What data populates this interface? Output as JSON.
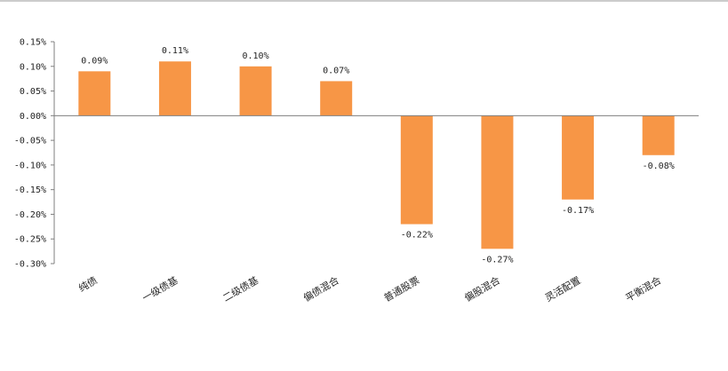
{
  "chart_data": {
    "type": "bar",
    "categories": [
      "纯债",
      "一级债基",
      "二级债基",
      "偏债混合",
      "普通股票",
      "偏股混合",
      "灵活配置",
      "平衡混合"
    ],
    "series": [
      {
        "values": [
          0.09,
          0.11,
          0.1,
          0.07,
          -0.22,
          -0.27,
          -0.17,
          -0.08
        ],
        "labels": [
          "0.09%",
          "0.11%",
          "0.10%",
          "0.07%",
          "-0.22%",
          "-0.27%",
          "-0.17%",
          "-0.08%"
        ]
      }
    ],
    "ylim": [
      -0.3,
      0.15
    ],
    "yticks": [
      0.15,
      0.1,
      0.05,
      0.0,
      -0.05,
      -0.1,
      -0.15,
      -0.2,
      -0.25,
      -0.3
    ],
    "ytick_labels": [
      "0.15%",
      "0.10%",
      "0.05%",
      "0.00%",
      "-0.05%",
      "-0.10%",
      "-0.15%",
      "-0.20%",
      "-0.25%",
      "-0.30%"
    ],
    "bar_color": "#F79646",
    "axis_color": "#7f7f7f",
    "grid": false,
    "legend": "none"
  }
}
